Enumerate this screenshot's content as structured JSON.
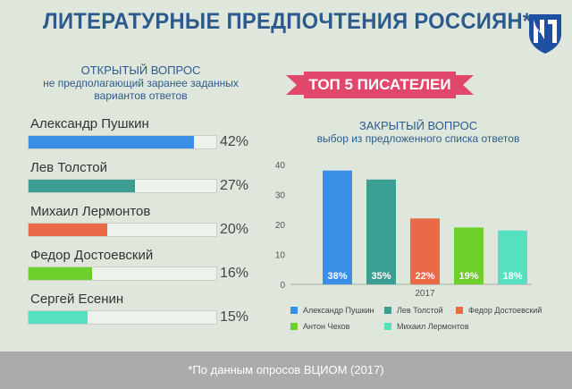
{
  "header": {
    "title": "ЛИТЕРАТУРНЫЕ ПРЕДПОЧТЕНИЯ РОССИЯН*"
  },
  "logo": {
    "icon": "vciom-logo-icon",
    "color": "#1f4fa0"
  },
  "open_question": {
    "heading": "ОТКРЫТЫЙ ВОПРОС",
    "line2": "не предполагающий заранее заданных",
    "line3": "вариантов ответов",
    "rows": [
      {
        "name": "Александр Пушкин",
        "percent_label": "42%",
        "value": 42,
        "color": "#3b8ee6"
      },
      {
        "name": "Лев Толстой",
        "percent_label": "27%",
        "value": 27,
        "color": "#3a9e92"
      },
      {
        "name": "Михаил Лермонтов",
        "percent_label": "20%",
        "value": 20,
        "color": "#ea6a48"
      },
      {
        "name": "Федор Достоевский",
        "percent_label": "16%",
        "value": 16,
        "color": "#6fcf2a"
      },
      {
        "name": "Сергей Есенин",
        "percent_label": "15%",
        "value": 15,
        "color": "#55e0c0"
      }
    ]
  },
  "ribbon": {
    "label": "ТОП 5 ПИСАТЕЛЕИ",
    "color": "#e0476a"
  },
  "closed_question": {
    "heading": "ЗАКРЫТЫЙ ВОПРОС",
    "subheading": "выбор из предложенного списка ответов"
  },
  "chart_data": {
    "type": "bar",
    "categories": [
      "2017"
    ],
    "ylim": [
      0,
      40
    ],
    "yticks": [
      "0",
      "10",
      "20",
      "30",
      "40"
    ],
    "series": [
      {
        "name": "Александр Пушкин",
        "value": 38,
        "label": "38%",
        "color": "#3b8ee6"
      },
      {
        "name": "Лев Толстой",
        "value": 35,
        "label": "35%",
        "color": "#3a9e92"
      },
      {
        "name": "Федор Достоевский",
        "value": 22,
        "label": "22%",
        "color": "#ea6a48"
      },
      {
        "name": "Антон Чехов",
        "value": 19,
        "label": "19%",
        "color": "#6fcf2a"
      },
      {
        "name": "Михаил Лермонтов",
        "value": 18,
        "label": "18%",
        "color": "#55e0c0"
      }
    ],
    "legend_placement": "bottom",
    "grid": false
  },
  "footer": {
    "text": "*По данным опросов ВЦИОМ (2017)"
  }
}
